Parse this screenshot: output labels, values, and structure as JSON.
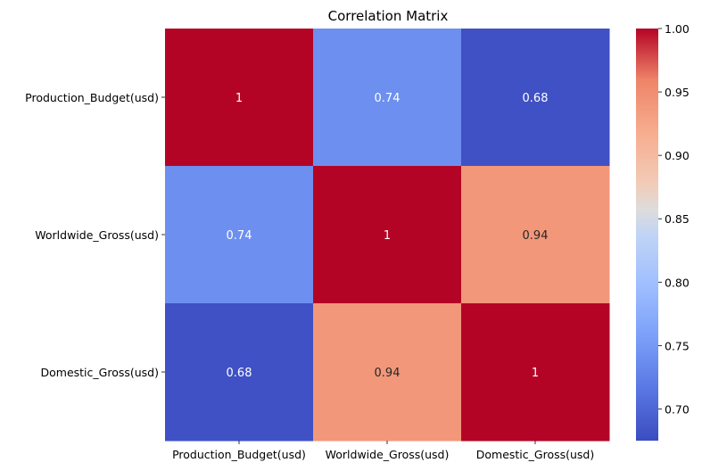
{
  "chart_data": {
    "type": "heatmap",
    "title": "Correlation Matrix",
    "xlabel": "",
    "ylabel": "",
    "x_categories": [
      "Production_Budget(usd)",
      "Worldwide_Gross(usd)",
      "Domestic_Gross(usd)"
    ],
    "y_categories": [
      "Production_Budget(usd)",
      "Worldwide_Gross(usd)",
      "Domestic_Gross(usd)"
    ],
    "values": [
      [
        1.0,
        0.74,
        0.68
      ],
      [
        0.74,
        1.0,
        0.94
      ],
      [
        0.68,
        0.94,
        1.0
      ]
    ],
    "cell_labels": [
      [
        "1",
        "0.74",
        "0.68"
      ],
      [
        "0.74",
        "1",
        "0.94"
      ],
      [
        "0.68",
        "0.94",
        "1"
      ]
    ],
    "colormap": "coolwarm",
    "vmin": 0.675,
    "vmax": 1.0,
    "colorbar_ticks": [
      0.7,
      0.75,
      0.8,
      0.85,
      0.9,
      0.95,
      1.0
    ],
    "colorbar_tick_labels": [
      "0.70",
      "0.75",
      "0.80",
      "0.85",
      "0.90",
      "0.95",
      "1.00"
    ],
    "grid": false,
    "legend": "right colorbar"
  }
}
